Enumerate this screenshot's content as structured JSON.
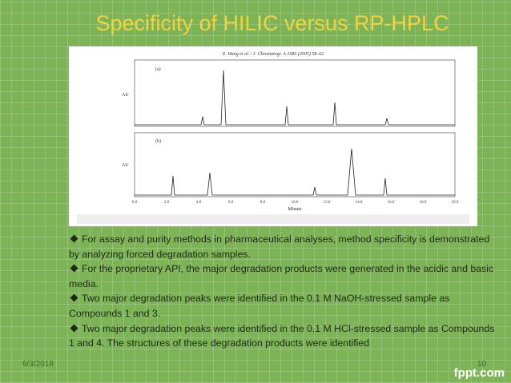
{
  "slide": {
    "title": "Specificity of HILIC versus RP-HPLC",
    "figure": {
      "citation": "X. Wang et al. / J. Chromatogr. A 1083 (2005) 58–62",
      "panel_a": "(a)",
      "panel_b": "(b)",
      "y_axis_label": "AU",
      "x_axis_label": "Minute",
      "x_ticks": [
        "0.0",
        "2.0",
        "4.0",
        "6.0",
        "8.0",
        "10.0",
        "12.0",
        "14.0",
        "16.0",
        "18.0",
        "20.0"
      ]
    },
    "bullets": [
      "For assay and purity methods in pharmaceutical analyses, method specificity is demonstrated by analyzing forced degradation samples.",
      "For the proprietary API, the major degradation products were generated in the acidic and basic media.",
      "Two major degradation peaks were identified in the 0.1 M NaOH-stressed sample as Compounds 1 and 3.",
      "Two major degradation peaks were identified in the 0.1 M HCl-stressed sample as Compounds 1 and 4. The structures of these degradation products were identified"
    ],
    "footer": {
      "date": "6/3/2018",
      "page": "10",
      "brand": "fppt.com"
    }
  }
}
